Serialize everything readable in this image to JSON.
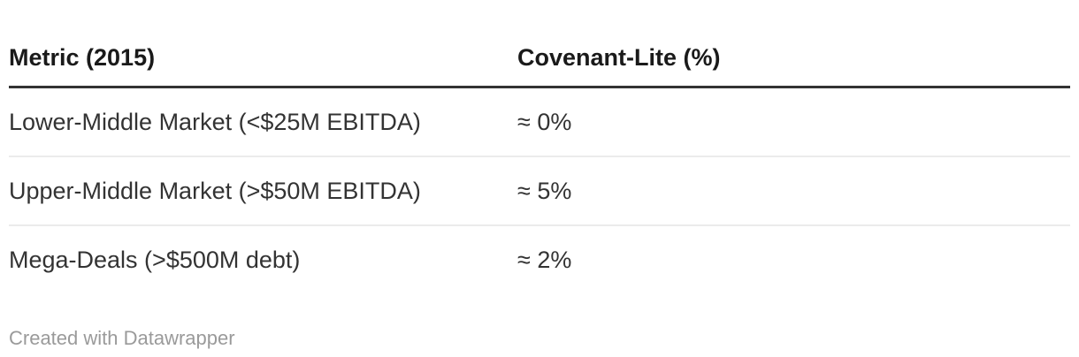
{
  "chart_data": {
    "type": "table",
    "columns": [
      {
        "label": "Metric (2015)"
      },
      {
        "label": "Covenant-Lite (%)"
      }
    ],
    "rows": [
      {
        "metric": "Lower-Middle Market (<$25M EBITDA)",
        "value": "≈ 0%",
        "value_numeric_pct": 0
      },
      {
        "metric": "Upper-Middle Market (>$50M EBITDA)",
        "value": "≈ 5%",
        "value_numeric_pct": 5
      },
      {
        "metric": "Mega-Deals (>$500M debt)",
        "value": "≈ 2%",
        "value_numeric_pct": 2
      }
    ]
  },
  "footer": {
    "attribution": "Created with Datawrapper"
  },
  "colors": {
    "header_text": "#1a1a1a",
    "body_text": "#333333",
    "header_rule": "#333333",
    "row_divider": "#ebebeb",
    "footer_text": "#9a9a9a",
    "background": "#ffffff"
  }
}
